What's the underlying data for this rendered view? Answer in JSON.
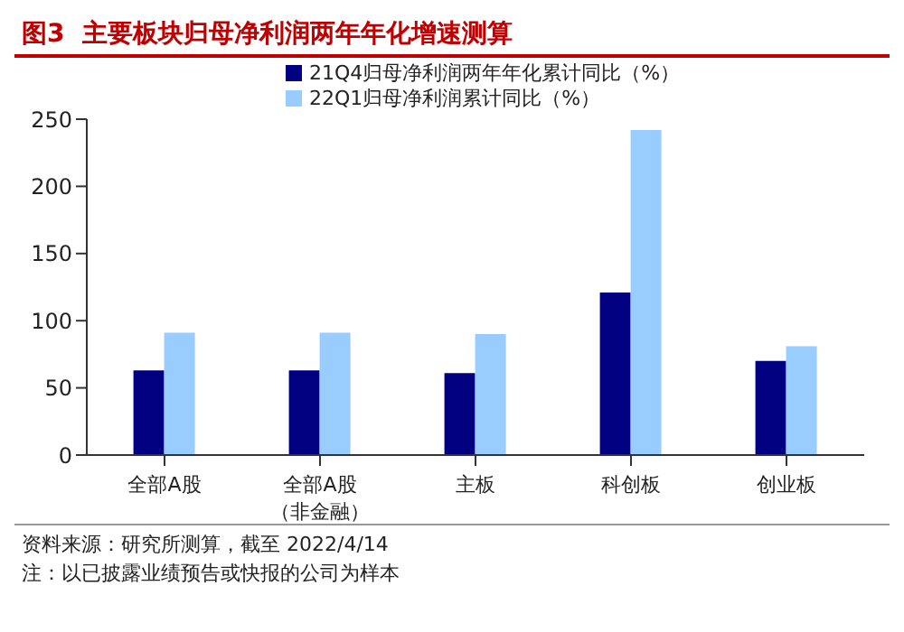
{
  "chart_data": {
    "type": "bar",
    "title": "图3  主要板块归母净利润两年年化增速测算",
    "categories": [
      "全部A股",
      "全部A股（非金融）",
      "主板",
      "科创板",
      "创业板"
    ],
    "series": [
      {
        "name": "21Q4归母净利润两年年化累计同比（%）",
        "color": "#000080",
        "values": [
          63,
          63,
          61,
          121,
          70
        ]
      },
      {
        "name": "22Q1归母净利润累计同比（%）",
        "color": "#99ccff",
        "values": [
          91,
          91,
          90,
          242,
          81
        ]
      }
    ],
    "ylim": [
      0,
      250
    ],
    "yticks": [
      0,
      50,
      100,
      150,
      200,
      250
    ],
    "grid": false,
    "legend": "top",
    "annotations": [
      "资料来源：研究所测算，截至 2022/4/14",
      "注：以已披露业绩预告或快报的公司为样本"
    ]
  }
}
